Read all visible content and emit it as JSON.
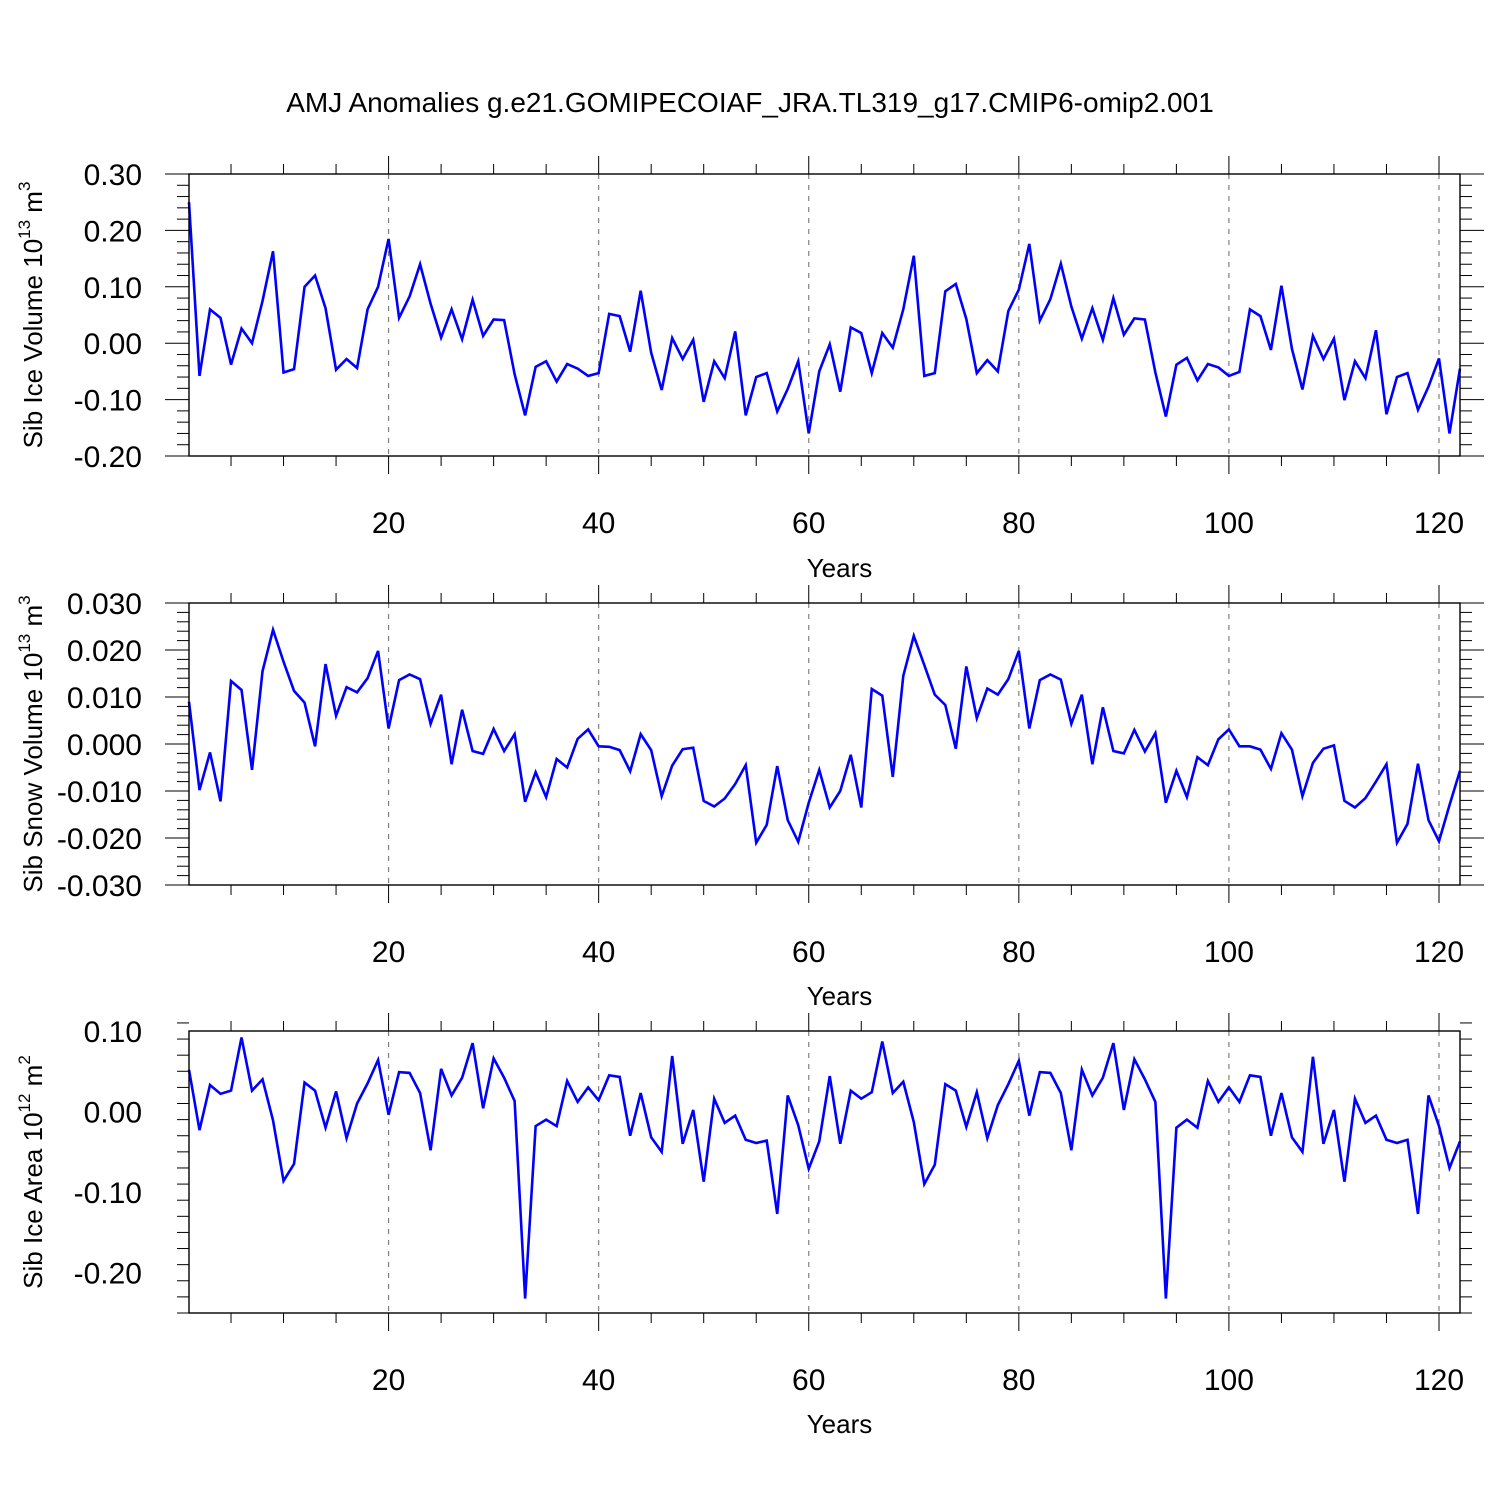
{
  "title": "AMJ Anomalies g.e21.GOMIPECOIAF_JRA.TL319_g17.CMIP6-omip2.001",
  "colors": {
    "line": "#0000ff",
    "axis": "#000000",
    "gridline": "#808080"
  },
  "chart_data": [
    {
      "type": "line",
      "ylabel": "Sib Ice Volume 10",
      "ylabel_exp": "13",
      "ylabel_unit": " m",
      "ylabel_unit_exp": "3",
      "xlabel": "Years",
      "xlim": [
        1,
        122
      ],
      "ylim": [
        -0.2,
        0.3
      ],
      "yticks": [
        -0.2,
        -0.1,
        0.0,
        0.1,
        0.2,
        0.3
      ],
      "ytick_labels": [
        "-0.20",
        "-0.10",
        "0.00",
        "0.10",
        "0.20",
        "0.30"
      ],
      "xticks": [
        20,
        40,
        60,
        80,
        100,
        120
      ],
      "xtick_labels": [
        "20",
        "40",
        "60",
        "80",
        "100",
        "120"
      ],
      "grid_x": true,
      "x_start": 1,
      "values": [
        0.25,
        -0.058,
        0.06,
        0.045,
        -0.038,
        0.026,
        0.0,
        0.075,
        0.163,
        -0.052,
        -0.046,
        0.1,
        0.12,
        0.062,
        -0.047,
        -0.028,
        -0.044,
        0.06,
        0.1,
        0.185,
        0.045,
        0.083,
        0.14,
        0.07,
        0.01,
        0.06,
        0.007,
        0.077,
        0.013,
        0.042,
        0.041,
        -0.055,
        -0.128,
        -0.042,
        -0.032,
        -0.068,
        -0.037,
        -0.045,
        -0.058,
        -0.053,
        0.052,
        0.048,
        -0.015,
        0.093,
        -0.017,
        -0.083,
        0.009,
        -0.028,
        0.006,
        -0.104,
        -0.032,
        -0.062,
        0.021,
        -0.128,
        -0.06,
        -0.053,
        -0.121,
        -0.081,
        -0.032,
        -0.16,
        -0.05,
        -0.002,
        -0.086,
        0.028,
        0.018,
        -0.053,
        0.018,
        -0.008,
        0.06,
        0.155,
        -0.058,
        -0.053,
        0.092,
        0.105,
        0.043,
        -0.053,
        -0.03,
        -0.05,
        0.057,
        0.095,
        0.176,
        0.04,
        0.078,
        0.141,
        0.065,
        0.008,
        0.062,
        0.006,
        0.08,
        0.015,
        0.044,
        0.042,
        -0.052,
        -0.13,
        -0.038,
        -0.026,
        -0.066,
        -0.037,
        -0.043,
        -0.058,
        -0.051,
        0.06,
        0.048,
        -0.012,
        0.102,
        -0.01,
        -0.082,
        0.013,
        -0.028,
        0.008,
        -0.101,
        -0.032,
        -0.062,
        0.023,
        -0.126,
        -0.06,
        -0.053,
        -0.118,
        -0.077,
        -0.027,
        -0.16,
        -0.045
      ]
    },
    {
      "type": "line",
      "ylabel": "Sib Snow Volume 10",
      "ylabel_exp": "13",
      "ylabel_unit": " m",
      "ylabel_unit_exp": "3",
      "xlabel": "Years",
      "xlim": [
        1,
        122
      ],
      "ylim": [
        -0.03,
        0.03
      ],
      "yticks": [
        -0.03,
        -0.02,
        -0.01,
        0.0,
        0.01,
        0.02,
        0.03
      ],
      "ytick_labels": [
        "-0.030",
        "-0.020",
        "-0.010",
        "0.000",
        "0.010",
        "0.020",
        "0.030"
      ],
      "xticks": [
        20,
        40,
        60,
        80,
        100,
        120
      ],
      "xtick_labels": [
        "20",
        "40",
        "60",
        "80",
        "100",
        "120"
      ],
      "grid_x": true,
      "x_start": 1,
      "values": [
        0.009,
        -0.0098,
        -0.0018,
        -0.0122,
        0.0134,
        0.0115,
        -0.0055,
        0.0155,
        0.0243,
        0.0175,
        0.0113,
        0.0088,
        -0.0005,
        0.017,
        0.006,
        0.0121,
        0.011,
        0.014,
        0.0198,
        0.0033,
        0.0136,
        0.0148,
        0.0138,
        0.0043,
        0.0105,
        -0.0043,
        0.0073,
        -0.0015,
        -0.0021,
        0.0032,
        -0.0015,
        0.0021,
        -0.0123,
        -0.006,
        -0.0113,
        -0.0032,
        -0.005,
        0.0011,
        0.0031,
        -0.0005,
        -0.0006,
        -0.0013,
        -0.0058,
        0.0021,
        -0.0013,
        -0.0111,
        -0.0046,
        -0.0011,
        -0.0008,
        -0.0121,
        -0.0133,
        -0.0116,
        -0.0085,
        -0.0045,
        -0.021,
        -0.0172,
        -0.0047,
        -0.0162,
        -0.0208,
        -0.0125,
        -0.0055,
        -0.0135,
        -0.01,
        -0.0023,
        -0.0135,
        0.0117,
        0.0103,
        -0.007,
        0.0145,
        0.023,
        0.0168,
        0.0105,
        0.0083,
        -0.001,
        0.0165,
        0.0055,
        0.0118,
        0.0105,
        0.0138,
        0.0198,
        0.0033,
        0.0136,
        0.0148,
        0.0137,
        0.0043,
        0.0105,
        -0.0043,
        0.0078,
        -0.0015,
        -0.002,
        0.003,
        -0.0016,
        0.0023,
        -0.0125,
        -0.0057,
        -0.0113,
        -0.0028,
        -0.0045,
        0.001,
        0.0031,
        -0.0005,
        -0.0005,
        -0.0012,
        -0.0053,
        0.0023,
        -0.0012,
        -0.0111,
        -0.004,
        -0.001,
        -0.0003,
        -0.0121,
        -0.0135,
        -0.0115,
        -0.008,
        -0.0043,
        -0.021,
        -0.017,
        -0.0042,
        -0.0162,
        -0.0207,
        -0.013,
        -0.0057
      ]
    },
    {
      "type": "line",
      "ylabel": "Sib Ice Area 10",
      "ylabel_exp": "12",
      "ylabel_unit": " m",
      "ylabel_unit_exp": "2",
      "xlabel": "Years",
      "xlim": [
        1,
        122
      ],
      "ylim": [
        -0.25,
        0.1
      ],
      "yticks": [
        -0.2,
        -0.1,
        0.0,
        0.1
      ],
      "ytick_labels": [
        "-0.20",
        "-0.10",
        "0.00",
        "0.10"
      ],
      "xticks": [
        20,
        40,
        60,
        80,
        100,
        120
      ],
      "xtick_labels": [
        "20",
        "40",
        "60",
        "80",
        "100",
        "120"
      ],
      "grid_x": true,
      "x_start": 1,
      "values": [
        0.052,
        -0.023,
        0.033,
        0.022,
        0.026,
        0.092,
        0.026,
        0.04,
        -0.011,
        -0.086,
        -0.065,
        0.036,
        0.026,
        -0.02,
        0.025,
        -0.033,
        0.01,
        0.035,
        0.064,
        -0.004,
        0.049,
        0.048,
        0.023,
        -0.048,
        0.053,
        0.02,
        0.042,
        0.085,
        0.004,
        0.066,
        0.042,
        0.013,
        -0.232,
        -0.018,
        -0.01,
        -0.018,
        0.038,
        0.012,
        0.03,
        0.014,
        0.045,
        0.043,
        -0.03,
        0.023,
        -0.032,
        -0.05,
        0.069,
        -0.04,
        0.002,
        -0.087,
        0.016,
        -0.014,
        -0.005,
        -0.035,
        -0.039,
        -0.036,
        -0.127,
        0.02,
        -0.017,
        -0.071,
        -0.037,
        0.044,
        -0.04,
        0.026,
        0.016,
        0.024,
        0.087,
        0.023,
        0.037,
        -0.013,
        -0.09,
        -0.066,
        0.034,
        0.026,
        -0.019,
        0.024,
        -0.033,
        0.008,
        0.034,
        0.063,
        -0.005,
        0.049,
        0.048,
        0.023,
        -0.048,
        0.052,
        0.02,
        0.042,
        0.085,
        0.002,
        0.065,
        0.04,
        0.012,
        -0.232,
        -0.02,
        -0.01,
        -0.02,
        0.038,
        0.012,
        0.03,
        0.012,
        0.045,
        0.043,
        -0.03,
        0.023,
        -0.032,
        -0.05,
        0.068,
        -0.04,
        0.002,
        -0.087,
        0.016,
        -0.014,
        -0.005,
        -0.035,
        -0.039,
        -0.035,
        -0.127,
        0.02,
        -0.018,
        -0.07,
        -0.037
      ]
    }
  ]
}
